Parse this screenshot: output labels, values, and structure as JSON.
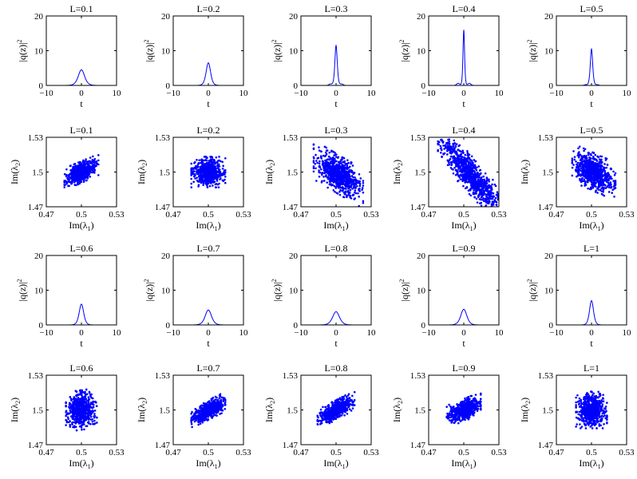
{
  "chart_data": [
    {
      "type": "line",
      "title": "L=0.1",
      "xlabel": "t",
      "ylabel": "|q(z)|",
      "ylabel_sup": "2",
      "xlim": [
        -10,
        10
      ],
      "ylim": [
        0,
        20
      ],
      "xticks": [
        "−10",
        "0",
        "10"
      ],
      "yticks": [
        "0",
        "10",
        "20"
      ],
      "series": [
        {
          "shape": "sech",
          "peak": 4.5,
          "width": 1.2,
          "color": "#0000ff"
        }
      ]
    },
    {
      "type": "line",
      "title": "L=0.2",
      "xlabel": "t",
      "ylabel": "|q(z)|",
      "ylabel_sup": "2",
      "xlim": [
        -10,
        10
      ],
      "ylim": [
        0,
        20
      ],
      "xticks": [
        "−10",
        "0",
        "10"
      ],
      "yticks": [
        "0",
        "10",
        "20"
      ],
      "series": [
        {
          "shape": "sech",
          "peak": 6.5,
          "width": 0.85,
          "color": "#0000ff"
        }
      ]
    },
    {
      "type": "line",
      "title": "L=0.3",
      "xlabel": "t",
      "ylabel": "|q(z)|",
      "ylabel_sup": "2",
      "xlim": [
        -10,
        10
      ],
      "ylim": [
        0,
        20
      ],
      "xticks": [
        "−10",
        "0",
        "10"
      ],
      "yticks": [
        "0",
        "10",
        "20"
      ],
      "series": [
        {
          "shape": "sech",
          "peak": 11.5,
          "width": 0.45,
          "side_lobe": 0.4,
          "color": "#0000ff"
        }
      ]
    },
    {
      "type": "line",
      "title": "L=0.4",
      "xlabel": "t",
      "ylabel": "|q(z)|",
      "ylabel_sup": "2",
      "xlim": [
        -10,
        10
      ],
      "ylim": [
        0,
        20
      ],
      "xticks": [
        "−10",
        "0",
        "10"
      ],
      "yticks": [
        "0",
        "10",
        "20"
      ],
      "series": [
        {
          "shape": "sech",
          "peak": 16,
          "width": 0.3,
          "side_lobe": 0.6,
          "color": "#0000ff"
        }
      ]
    },
    {
      "type": "line",
      "title": "L=0.5",
      "xlabel": "t",
      "ylabel": "|q(z)|",
      "ylabel_sup": "2",
      "xlim": [
        -10,
        10
      ],
      "ylim": [
        0,
        20
      ],
      "xticks": [
        "−10",
        "0",
        "10"
      ],
      "yticks": [
        "0",
        "10",
        "20"
      ],
      "series": [
        {
          "shape": "sech",
          "peak": 10.5,
          "width": 0.45,
          "side_lobe": 0.2,
          "color": "#0000ff"
        }
      ]
    },
    {
      "type": "scatter",
      "title": "L=0.1",
      "xlabel": "Im(λ",
      "xlabel_sub": "1",
      "xlabel_end": ")",
      "ylabel": "Im(λ",
      "ylabel_sub": "2",
      "ylabel_end": ")",
      "xlim": [
        0.47,
        0.53
      ],
      "ylim": [
        1.47,
        1.53
      ],
      "xticks": [
        "0.47",
        "0.5",
        "0.53"
      ],
      "yticks": [
        "1.47",
        "1.5",
        "1.53"
      ],
      "cloud": {
        "cx": 0.5,
        "cy": 1.5,
        "sx": 0.011,
        "sy": 0.0085,
        "rho": 0.55,
        "n": 650,
        "color": "#0000ff"
      }
    },
    {
      "type": "scatter",
      "title": "L=0.2",
      "xlabel": "Im(λ",
      "xlabel_sub": "1",
      "xlabel_end": ")",
      "ylabel": "Im(λ",
      "ylabel_sub": "2",
      "ylabel_end": ")",
      "xlim": [
        0.47,
        0.53
      ],
      "ylim": [
        1.47,
        1.53
      ],
      "xticks": [
        "0.47",
        "0.5",
        "0.53"
      ],
      "yticks": [
        "1.47",
        "1.5",
        "1.53"
      ],
      "cloud": {
        "cx": 0.5,
        "cy": 1.5,
        "sx": 0.011,
        "sy": 0.01,
        "rho": 0.0,
        "n": 650,
        "color": "#0000ff"
      }
    },
    {
      "type": "scatter",
      "title": "L=0.3",
      "xlabel": "Im(λ",
      "xlabel_sub": "1",
      "xlabel_end": ")",
      "ylabel": "Im(λ",
      "ylabel_sub": "2",
      "ylabel_end": ")",
      "xlim": [
        0.47,
        0.53
      ],
      "ylim": [
        1.47,
        1.53
      ],
      "xticks": [
        "0.47",
        "0.5",
        "0.53"
      ],
      "yticks": [
        "1.47",
        "1.5",
        "1.53"
      ],
      "cloud": {
        "cx": 0.502,
        "cy": 1.498,
        "sx": 0.016,
        "sy": 0.016,
        "rho": -0.6,
        "n": 750,
        "color": "#0000ff"
      }
    },
    {
      "type": "scatter",
      "title": "L=0.4",
      "xlabel": "Im(λ",
      "xlabel_sub": "1",
      "xlabel_end": ")",
      "ylabel": "Im(λ",
      "ylabel_sub": "2",
      "ylabel_end": ")",
      "xlim": [
        0.47,
        0.53
      ],
      "ylim": [
        1.47,
        1.53
      ],
      "xticks": [
        "0.47",
        "0.5",
        "0.53"
      ],
      "yticks": [
        "1.47",
        "1.5",
        "1.53"
      ],
      "cloud": {
        "cx": 0.507,
        "cy": 1.496,
        "sx": 0.022,
        "sy": 0.028,
        "rho": -0.88,
        "n": 900,
        "color": "#0000ff"
      }
    },
    {
      "type": "scatter",
      "title": "L=0.5",
      "xlabel": "Im(λ",
      "xlabel_sub": "1",
      "xlabel_end": ")",
      "ylabel": "Im(λ",
      "ylabel_sub": "2",
      "ylabel_end": ")",
      "xlim": [
        0.47,
        0.53
      ],
      "ylim": [
        1.47,
        1.53
      ],
      "xticks": [
        "0.47",
        "0.5",
        "0.53"
      ],
      "yticks": [
        "1.47",
        "1.5",
        "1.53"
      ],
      "cloud": {
        "cx": 0.502,
        "cy": 1.5,
        "sx": 0.014,
        "sy": 0.014,
        "rho": -0.45,
        "n": 750,
        "color": "#0000ff"
      }
    },
    {
      "type": "line",
      "title": "L=0.6",
      "xlabel": "t",
      "ylabel": "|q(z)|",
      "ylabel_sup": "2",
      "xlim": [
        -10,
        10
      ],
      "ylim": [
        0,
        20
      ],
      "xticks": [
        "−10",
        "0",
        "10"
      ],
      "yticks": [
        "0",
        "10",
        "20"
      ],
      "series": [
        {
          "shape": "sech",
          "peak": 6,
          "width": 0.85,
          "color": "#0000ff"
        }
      ]
    },
    {
      "type": "line",
      "title": "L=0.7",
      "xlabel": "t",
      "ylabel": "|q(z)|",
      "ylabel_sup": "2",
      "xlim": [
        -10,
        10
      ],
      "ylim": [
        0,
        20
      ],
      "xticks": [
        "−10",
        "0",
        "10"
      ],
      "yticks": [
        "0",
        "10",
        "20"
      ],
      "series": [
        {
          "shape": "sech",
          "peak": 4.3,
          "width": 1.2,
          "color": "#0000ff"
        }
      ]
    },
    {
      "type": "line",
      "title": "L=0.8",
      "xlabel": "t",
      "ylabel": "|q(z)|",
      "ylabel_sup": "2",
      "xlim": [
        -10,
        10
      ],
      "ylim": [
        0,
        20
      ],
      "xticks": [
        "−10",
        "0",
        "10"
      ],
      "yticks": [
        "0",
        "10",
        "20"
      ],
      "series": [
        {
          "shape": "sech",
          "peak": 3.8,
          "width": 1.3,
          "color": "#0000ff"
        }
      ]
    },
    {
      "type": "line",
      "title": "L=0.9",
      "xlabel": "t",
      "ylabel": "|q(z)|",
      "ylabel_sup": "2",
      "xlim": [
        -10,
        10
      ],
      "ylim": [
        0,
        20
      ],
      "xticks": [
        "−10",
        "0",
        "10"
      ],
      "yticks": [
        "0",
        "10",
        "20"
      ],
      "series": [
        {
          "shape": "sech",
          "peak": 4.5,
          "width": 1.15,
          "color": "#0000ff"
        }
      ]
    },
    {
      "type": "line",
      "title": "L=1",
      "xlabel": "t",
      "ylabel": "|q(z)|",
      "ylabel_sup": "2",
      "xlim": [
        -10,
        10
      ],
      "ylim": [
        0,
        20
      ],
      "xticks": [
        "−10",
        "0",
        "10"
      ],
      "yticks": [
        "0",
        "10",
        "20"
      ],
      "series": [
        {
          "shape": "sech",
          "peak": 7,
          "width": 0.75,
          "color": "#0000ff"
        }
      ]
    },
    {
      "type": "scatter",
      "title": "L=0.6",
      "xlabel": "Im(λ",
      "xlabel_sub": "1",
      "xlabel_end": ")",
      "ylabel": "Im(λ",
      "ylabel_sub": "2",
      "ylabel_end": ")",
      "xlim": [
        0.47,
        0.53
      ],
      "ylim": [
        1.47,
        1.53
      ],
      "xticks": [
        "0.47",
        "0.5",
        "0.53"
      ],
      "yticks": [
        "1.47",
        "1.5",
        "1.53"
      ],
      "cloud": {
        "cx": 0.5,
        "cy": 1.5,
        "sx": 0.01,
        "sy": 0.013,
        "rho": 0.1,
        "n": 650,
        "color": "#0000ff"
      }
    },
    {
      "type": "scatter",
      "title": "L=0.7",
      "xlabel": "Im(λ",
      "xlabel_sub": "1",
      "xlabel_end": ")",
      "ylabel": "Im(λ",
      "ylabel_sub": "2",
      "ylabel_end": ")",
      "xlim": [
        0.47,
        0.53
      ],
      "ylim": [
        1.47,
        1.53
      ],
      "xticks": [
        "0.47",
        "0.5",
        "0.53"
      ],
      "yticks": [
        "1.47",
        "1.5",
        "1.53"
      ],
      "cloud": {
        "cx": 0.5,
        "cy": 1.5,
        "sx": 0.011,
        "sy": 0.0085,
        "rho": 0.65,
        "n": 650,
        "color": "#0000ff"
      }
    },
    {
      "type": "scatter",
      "title": "L=0.8",
      "xlabel": "Im(λ",
      "xlabel_sub": "1",
      "xlabel_end": ")",
      "ylabel": "Im(λ",
      "ylabel_sub": "2",
      "ylabel_end": ")",
      "xlim": [
        0.47,
        0.53
      ],
      "ylim": [
        1.47,
        1.53
      ],
      "xticks": [
        "0.47",
        "0.5",
        "0.53"
      ],
      "yticks": [
        "1.47",
        "1.5",
        "1.53"
      ],
      "cloud": {
        "cx": 0.5,
        "cy": 1.5,
        "sx": 0.012,
        "sy": 0.009,
        "rho": 0.7,
        "n": 650,
        "color": "#0000ff"
      }
    },
    {
      "type": "scatter",
      "title": "L=0.9",
      "xlabel": "Im(λ",
      "xlabel_sub": "1",
      "xlabel_end": ")",
      "ylabel": "Im(λ",
      "ylabel_sub": "2",
      "ylabel_end": ")",
      "xlim": [
        0.47,
        0.53
      ],
      "ylim": [
        1.47,
        1.53
      ],
      "xticks": [
        "0.47",
        "0.5",
        "0.53"
      ],
      "yticks": [
        "1.47",
        "1.5",
        "1.53"
      ],
      "cloud": {
        "cx": 0.5,
        "cy": 1.5,
        "sx": 0.011,
        "sy": 0.0085,
        "rho": 0.5,
        "n": 650,
        "color": "#0000ff"
      }
    },
    {
      "type": "scatter",
      "title": "L=1",
      "xlabel": "Im(λ",
      "xlabel_sub": "1",
      "xlabel_end": ")",
      "ylabel": "Im(λ",
      "ylabel_sub": "2",
      "ylabel_end": ")",
      "xlim": [
        0.47,
        0.53
      ],
      "ylim": [
        1.47,
        1.53
      ],
      "xticks": [
        "0.47",
        "0.5",
        "0.53"
      ],
      "yticks": [
        "1.47",
        "1.5",
        "1.53"
      ],
      "cloud": {
        "cx": 0.5,
        "cy": 1.5,
        "sx": 0.01,
        "sy": 0.012,
        "rho": 0.0,
        "n": 650,
        "color": "#0000ff"
      }
    }
  ]
}
